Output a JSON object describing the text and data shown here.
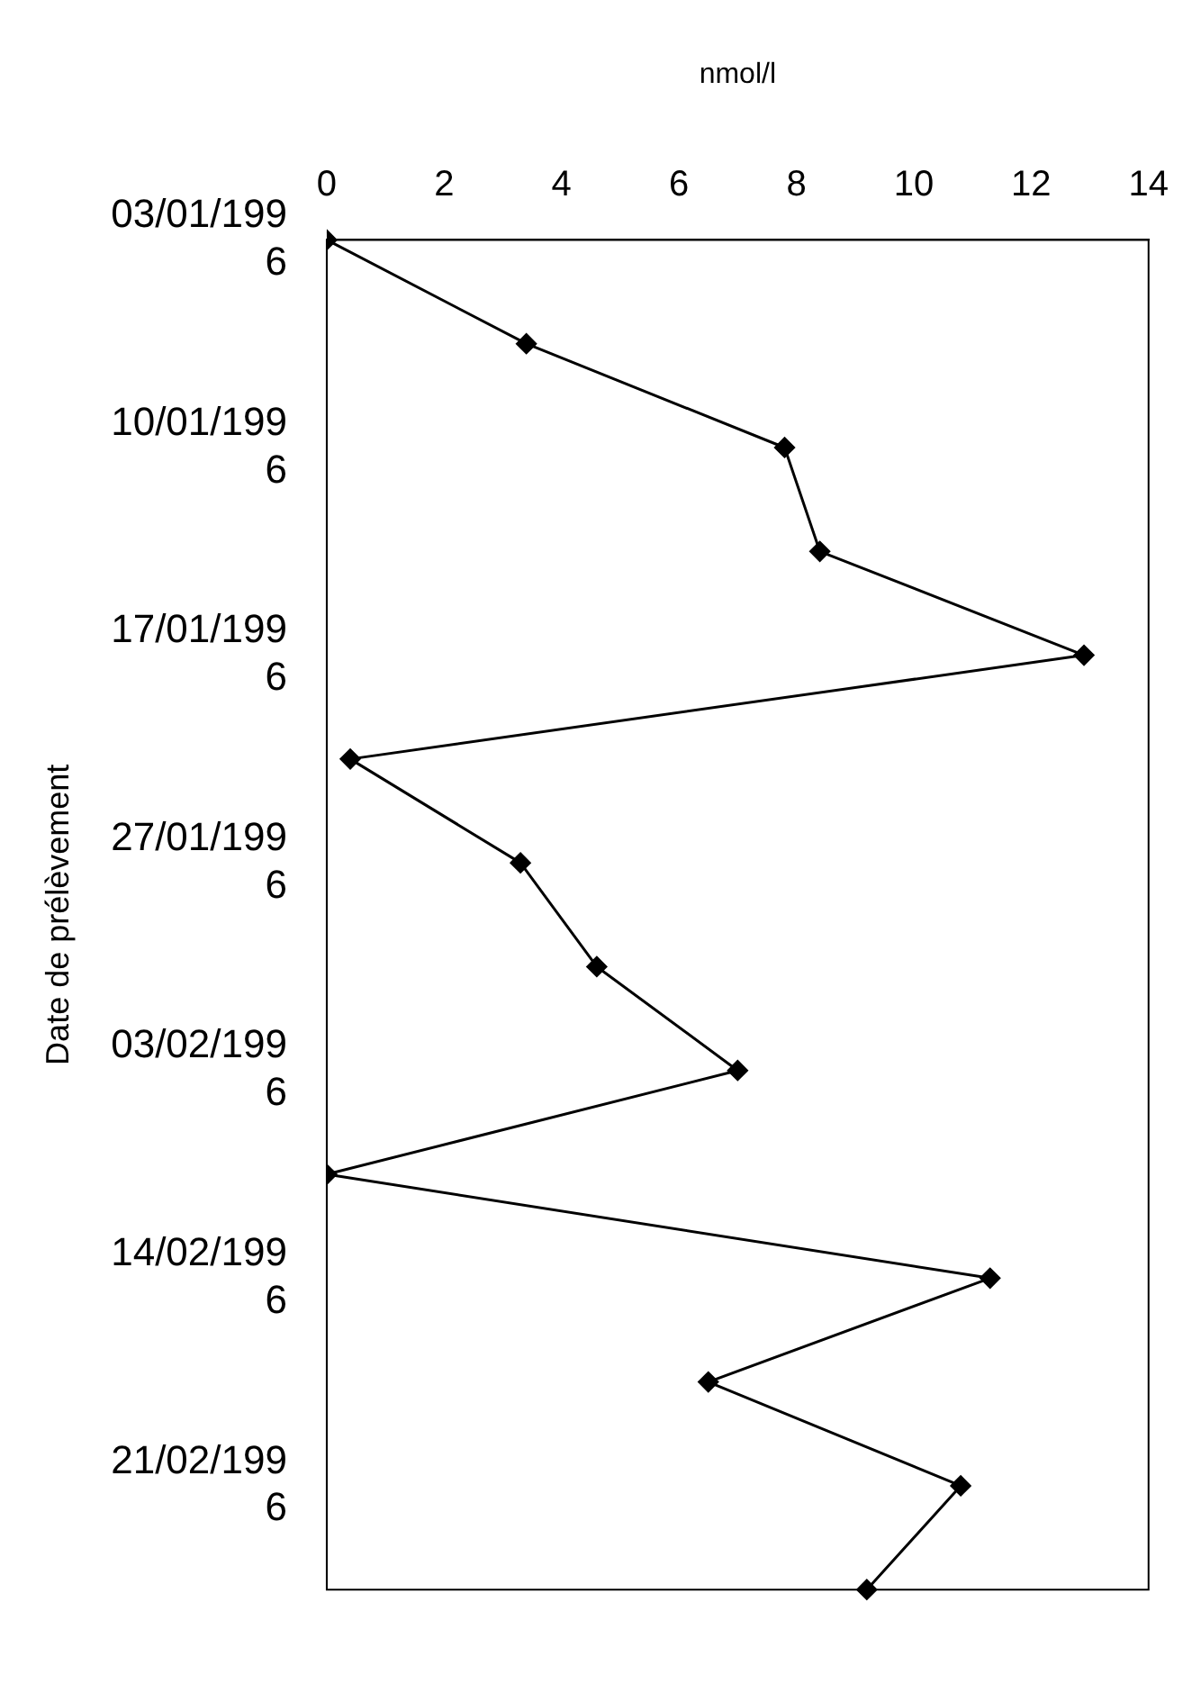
{
  "chart_data": {
    "type": "line",
    "orientation": "horizontal",
    "xlabel": "nmol/l",
    "ylabel": "Date de prélèvement",
    "categories": [
      "03/01/1996",
      null,
      "10/01/1996",
      null,
      "17/01/1996",
      null,
      "27/01/1996",
      null,
      "03/02/1996",
      null,
      "14/02/1996",
      null,
      "21/02/1996",
      null
    ],
    "series": [
      {
        "color": "#000000",
        "values": [
          0,
          3.4,
          7.8,
          8.4,
          12.9,
          0.4,
          3.3,
          4.6,
          7.0,
          0,
          11.3,
          6.5,
          10.8,
          9.2
        ]
      }
    ],
    "xlim": [
      0,
      14
    ],
    "xticks": [
      0,
      2,
      4,
      6,
      8,
      10,
      12,
      14
    ],
    "marker": "diamond",
    "line_style": "solid",
    "grid": false,
    "legend": false
  }
}
